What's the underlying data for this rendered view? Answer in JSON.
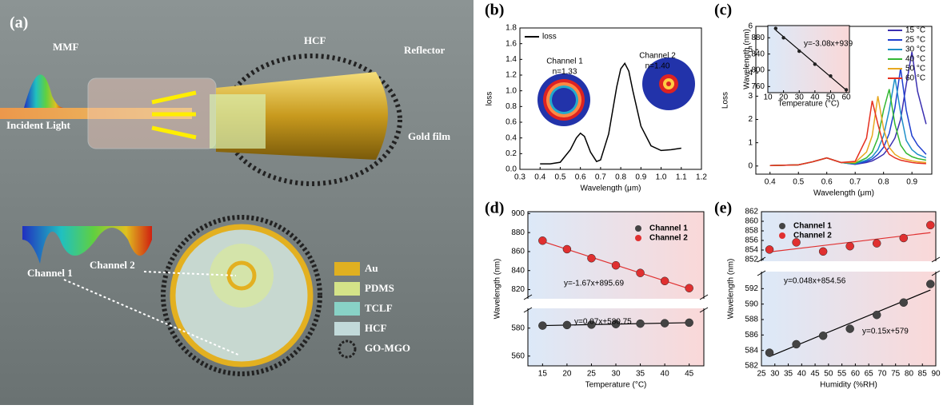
{
  "figure_panel": {
    "label": "(a)",
    "callouts": [
      "MMF",
      "HCF",
      "Reflector",
      "Incident Light",
      "Gold film",
      "Channel 1",
      "Channel 2"
    ],
    "legend": [
      "Au",
      "PDMS",
      "TCLF",
      "HCF",
      "GO-MGO"
    ]
  },
  "chart_data": [
    {
      "type": "line",
      "label": "(b)",
      "xlabel": "Wavelength (μm)",
      "ylabel": "loss",
      "legend": "top-left",
      "xlim": [
        0.3,
        1.2
      ],
      "xticks": [
        0.3,
        0.4,
        0.5,
        0.6,
        0.7,
        0.8,
        0.9,
        {
          "value": 1,
          "label": "1.0"
        },
        1.1,
        1.2
      ],
      "ylim": [
        0,
        1.8
      ],
      "yticks": [
        {
          "value": 0,
          "label": "0.0"
        },
        0.2,
        0.4,
        0.6,
        0.8,
        {
          "value": 1,
          "label": "1.0"
        },
        1.2,
        1.4,
        1.6,
        1.8
      ],
      "x": [
        0.4,
        0.45,
        0.5,
        0.55,
        0.58,
        0.6,
        0.62,
        0.65,
        0.68,
        0.7,
        0.74,
        0.78,
        0.8,
        0.82,
        0.84,
        0.86,
        0.9,
        0.95,
        1.0,
        1.05,
        1.1
      ],
      "series": [
        {
          "name": "loss",
          "color": "#000000",
          "values": [
            0.07,
            0.07,
            0.09,
            0.25,
            0.4,
            0.46,
            0.42,
            0.22,
            0.1,
            0.12,
            0.45,
            1.05,
            1.28,
            1.35,
            1.25,
            1.0,
            0.55,
            0.3,
            0.24,
            0.25,
            0.27
          ]
        }
      ],
      "annotations": [
        "Channel 1",
        "n=1.33",
        "Channel 2",
        "n=1.40"
      ]
    },
    {
      "type": "line",
      "label": "(c)",
      "xlabel": "Wavelength (μm)",
      "ylabel": "Loss",
      "legend": "outside-right",
      "xlim": [
        0.35,
        0.97
      ],
      "xticks": [
        0.4,
        0.5,
        0.6,
        0.7,
        0.8,
        0.9
      ],
      "ylim": [
        -0.35,
        6
      ],
      "yticks": [
        0,
        1,
        2,
        3,
        4,
        5,
        6
      ],
      "x": [
        0.4,
        0.5,
        0.55,
        0.6,
        0.65,
        0.7,
        0.74,
        0.76,
        0.78,
        0.8,
        0.82,
        0.84,
        0.86,
        0.88,
        0.9,
        0.92,
        0.95
      ],
      "series": [
        {
          "name": "15 °C",
          "color": "#3b2fb0",
          "values": [
            0.02,
            0.05,
            0.18,
            0.35,
            0.15,
            0.07,
            0.15,
            0.22,
            0.35,
            0.5,
            0.8,
            1.2,
            2.0,
            3.5,
            4.9,
            3.2,
            1.8
          ]
        },
        {
          "name": "25 °C",
          "color": "#1f3fcf",
          "values": [
            0.02,
            0.05,
            0.18,
            0.35,
            0.15,
            0.08,
            0.2,
            0.3,
            0.5,
            0.8,
            1.4,
            2.5,
            4.2,
            2.4,
            1.3,
            0.9,
            0.5
          ]
        },
        {
          "name": "30 °C",
          "color": "#1e8fc8",
          "values": [
            0.02,
            0.05,
            0.18,
            0.35,
            0.15,
            0.1,
            0.25,
            0.4,
            0.7,
            1.3,
            2.4,
            3.8,
            2.3,
            1.1,
            0.7,
            0.5,
            0.35
          ]
        },
        {
          "name": "40 °C",
          "color": "#33b833",
          "values": [
            0.02,
            0.05,
            0.18,
            0.35,
            0.15,
            0.12,
            0.35,
            0.6,
            1.2,
            2.4,
            3.3,
            1.8,
            0.9,
            0.55,
            0.4,
            0.32,
            0.25
          ]
        },
        {
          "name": "50 °C",
          "color": "#e8a820",
          "values": [
            0.02,
            0.05,
            0.18,
            0.35,
            0.15,
            0.15,
            0.6,
            1.3,
            3.0,
            1.6,
            0.8,
            0.5,
            0.35,
            0.28,
            0.22,
            0.18,
            0.15
          ]
        },
        {
          "name": "60 °C",
          "color": "#e53020",
          "values": [
            0.02,
            0.05,
            0.18,
            0.35,
            0.15,
            0.2,
            1.2,
            2.8,
            1.8,
            0.9,
            0.5,
            0.35,
            0.25,
            0.2,
            0.15,
            0.12,
            0.1
          ]
        }
      ]
    },
    {
      "type": "scatter",
      "xlabel": "Temperature (°C)",
      "ylabel": "Wavelength (nm)",
      "fit": true,
      "inset": true,
      "xlim": [
        10,
        62
      ],
      "xticks": [
        10,
        20,
        30,
        40,
        50,
        60
      ],
      "ylim": [
        745,
        910
      ],
      "yticks": [
        760,
        800,
        840,
        880
      ],
      "x": [
        15,
        20,
        30,
        40,
        50,
        60
      ],
      "series": [
        {
          "color": "#222222",
          "values": [
            903,
            880,
            847,
            815,
            786,
            752
          ]
        }
      ],
      "annotations": [
        "y=-3.08x+939"
      ]
    },
    {
      "type": "scatter",
      "label": "(d)",
      "xlabel": "Temperature (°C)",
      "ylabel": "Wavelength (nm)",
      "fit": true,
      "legend": "top-right",
      "xlim": [
        12,
        48
      ],
      "xticks": [
        15,
        20,
        25,
        30,
        35,
        40,
        45
      ],
      "ylims": [
        [
          553,
          593
        ],
        [
          812,
          902
        ]
      ],
      "yticks": [
        560,
        580,
        820,
        840,
        860,
        880,
        900
      ],
      "x": [
        15,
        20,
        25,
        30,
        35,
        40,
        45
      ],
      "series": [
        {
          "name": "Channel 1",
          "color": "#444444",
          "values": [
            581.8,
            582.2,
            582.5,
            582.9,
            583.2,
            583.5,
            583.9
          ]
        },
        {
          "name": "Channel 2",
          "color": "#e03030",
          "values": [
            871.5,
            862.5,
            853.0,
            845.5,
            837.5,
            829.0,
            821.5
          ]
        }
      ],
      "annotations": [
        "y=-1.67x+895.69",
        "y=0.07x+580.75"
      ]
    },
    {
      "type": "scatter",
      "label": "(e)",
      "xlabel": "Humidity (%RH)",
      "ylabel": "Wavelength (nm)",
      "fit": true,
      "legend": "top-left",
      "xlim": [
        25,
        90
      ],
      "xticks": [
        25,
        30,
        35,
        40,
        45,
        50,
        55,
        60,
        65,
        70,
        75,
        80,
        85,
        90
      ],
      "ylims": [
        [
          582,
          594
        ],
        [
          852,
          862
        ]
      ],
      "yticks": [
        582,
        584,
        586,
        588,
        590,
        592,
        852,
        854,
        856,
        858,
        860,
        862
      ],
      "x": [
        28,
        38,
        48,
        58,
        68,
        78,
        88
      ],
      "series": [
        {
          "name": "Channel 1",
          "color": "#444444",
          "values": [
            583.7,
            584.8,
            585.9,
            586.8,
            588.6,
            590.2,
            592.6
          ]
        },
        {
          "name": "Channel 2",
          "color": "#e03030",
          "values": [
            854.1,
            855.6,
            853.7,
            854.8,
            855.4,
            856.5,
            859.2
          ]
        }
      ],
      "annotations": [
        "y=0.048x+854.56",
        "y=0.15x+579"
      ]
    }
  ]
}
